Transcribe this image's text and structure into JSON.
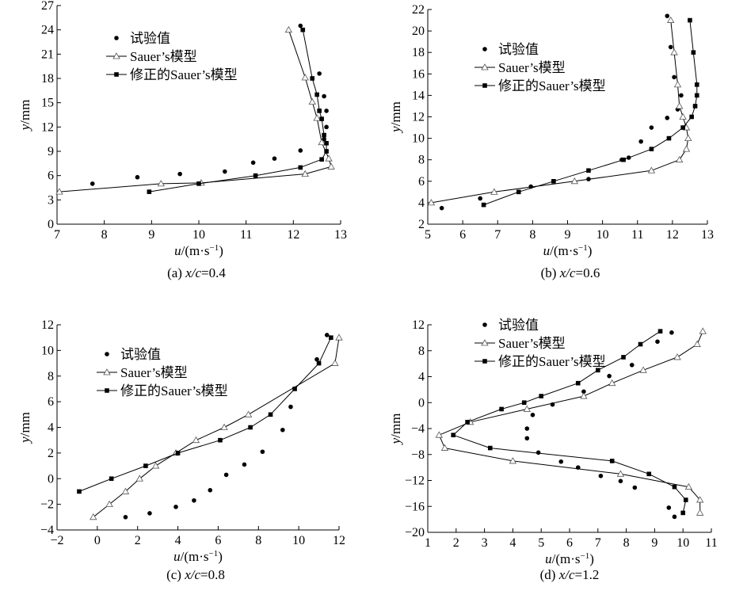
{
  "figure": {
    "legend_labels": {
      "exp": "试验值",
      "sauer": "Sauer’s模型",
      "mod": "修正的Sauer’s模型"
    },
    "xlabel": {
      "pre": "u",
      "post": "/(m·s",
      "sup": "−1",
      "close": ")"
    },
    "ylabel": {
      "pre": "y",
      "post": "/mm"
    }
  },
  "chart_data": [
    {
      "id": "a",
      "type": "scatter+line",
      "caption": {
        "pre": "(a) ",
        "it": "x/c",
        "post": "=0.4"
      },
      "xlim": [
        7,
        13
      ],
      "ylim": [
        0,
        27
      ],
      "xticks": [
        7,
        8,
        9,
        10,
        11,
        12,
        13
      ],
      "yticks": [
        0,
        3,
        6,
        9,
        12,
        15,
        18,
        21,
        24,
        27
      ],
      "legend_position": "top-left",
      "series": [
        {
          "name": "试验值",
          "marker": "circle",
          "line": false,
          "points": [
            [
              7.75,
              5.0
            ],
            [
              8.7,
              5.8
            ],
            [
              9.6,
              6.2
            ],
            [
              10.55,
              6.5
            ],
            [
              11.15,
              7.6
            ],
            [
              11.6,
              8.1
            ],
            [
              12.15,
              9.1
            ],
            [
              12.65,
              10.5
            ],
            [
              12.7,
              12.0
            ],
            [
              12.7,
              14.0
            ],
            [
              12.65,
              15.8
            ],
            [
              12.55,
              18.6
            ],
            [
              12.15,
              24.5
            ]
          ]
        },
        {
          "name": "Sauer’s模型",
          "marker": "triangle",
          "line": true,
          "points": [
            [
              7.05,
              4.0
            ],
            [
              9.2,
              5.0
            ],
            [
              10.05,
              5.1
            ],
            [
              12.25,
              6.2
            ],
            [
              12.8,
              7.1
            ],
            [
              12.75,
              8.1
            ],
            [
              12.6,
              10.1
            ],
            [
              12.5,
              13.1
            ],
            [
              12.4,
              15.1
            ],
            [
              12.25,
              18.1
            ],
            [
              11.9,
              24.0
            ]
          ]
        },
        {
          "name": "修正的Sauer’s模型",
          "marker": "square",
          "line": true,
          "points": [
            [
              8.95,
              4.0
            ],
            [
              10.0,
              5.0
            ],
            [
              11.2,
              6.0
            ],
            [
              12.15,
              7.0
            ],
            [
              12.6,
              8.0
            ],
            [
              12.7,
              9.0
            ],
            [
              12.7,
              10.0
            ],
            [
              12.65,
              11.0
            ],
            [
              12.6,
              13.0
            ],
            [
              12.55,
              14.0
            ],
            [
              12.5,
              16.0
            ],
            [
              12.4,
              18.0
            ],
            [
              12.2,
              24.0
            ]
          ]
        }
      ]
    },
    {
      "id": "b",
      "type": "scatter+line",
      "caption": {
        "pre": "(b) ",
        "it": "x/c",
        "post": "=0.6"
      },
      "xlim": [
        5,
        13
      ],
      "ylim": [
        2,
        22
      ],
      "xticks": [
        5,
        6,
        7,
        8,
        9,
        10,
        11,
        12,
        13
      ],
      "yticks": [
        2,
        4,
        6,
        8,
        10,
        12,
        14,
        16,
        18,
        20,
        22
      ],
      "legend_position": "top-left",
      "series": [
        {
          "name": "试验值",
          "marker": "circle",
          "line": false,
          "points": [
            [
              5.4,
              3.5
            ],
            [
              6.5,
              4.4
            ],
            [
              7.95,
              5.5
            ],
            [
              9.6,
              6.2
            ],
            [
              10.55,
              8.0
            ],
            [
              10.75,
              8.2
            ],
            [
              11.1,
              9.7
            ],
            [
              11.4,
              11.0
            ],
            [
              11.85,
              11.9
            ],
            [
              12.15,
              12.7
            ],
            [
              12.25,
              14.0
            ],
            [
              12.05,
              15.7
            ],
            [
              11.95,
              18.5
            ],
            [
              11.85,
              21.4
            ]
          ]
        },
        {
          "name": "Sauer’s模型",
          "marker": "triangle",
          "line": true,
          "points": [
            [
              5.1,
              4.0
            ],
            [
              6.9,
              5.0
            ],
            [
              9.2,
              6.0
            ],
            [
              11.4,
              7.0
            ],
            [
              12.2,
              8.0
            ],
            [
              12.4,
              9.0
            ],
            [
              12.45,
              10.0
            ],
            [
              12.4,
              11.0
            ],
            [
              12.3,
              12.0
            ],
            [
              12.2,
              13.0
            ],
            [
              12.15,
              15.0
            ],
            [
              12.05,
              18.0
            ],
            [
              11.95,
              21.0
            ]
          ]
        },
        {
          "name": "修正的Sauer’s模型",
          "marker": "square",
          "line": true,
          "points": [
            [
              6.6,
              3.8
            ],
            [
              7.6,
              5.0
            ],
            [
              8.6,
              6.0
            ],
            [
              9.6,
              7.0
            ],
            [
              10.6,
              8.0
            ],
            [
              11.4,
              9.0
            ],
            [
              11.9,
              10.0
            ],
            [
              12.3,
              11.0
            ],
            [
              12.55,
              12.0
            ],
            [
              12.65,
              13.0
            ],
            [
              12.7,
              14.0
            ],
            [
              12.7,
              15.0
            ],
            [
              12.6,
              18.0
            ],
            [
              12.5,
              21.0
            ]
          ]
        }
      ]
    },
    {
      "id": "c",
      "type": "scatter+line",
      "caption": {
        "pre": "(c) ",
        "it": "x/c",
        "post": "=0.8"
      },
      "xlim": [
        -2,
        12
      ],
      "ylim": [
        -4,
        12
      ],
      "xticks": [
        -2,
        0,
        2,
        4,
        6,
        8,
        10,
        12
      ],
      "yticks": [
        -4,
        -2,
        0,
        2,
        4,
        6,
        8,
        10,
        12
      ],
      "legend_position": "top-left",
      "series": [
        {
          "name": "试验值",
          "marker": "circle",
          "line": false,
          "points": [
            [
              1.4,
              -3.0
            ],
            [
              2.6,
              -2.7
            ],
            [
              3.9,
              -2.2
            ],
            [
              4.8,
              -1.7
            ],
            [
              5.6,
              -0.9
            ],
            [
              6.4,
              0.3
            ],
            [
              7.3,
              1.1
            ],
            [
              8.2,
              2.1
            ],
            [
              9.2,
              3.8
            ],
            [
              9.6,
              5.6
            ],
            [
              10.9,
              9.3
            ],
            [
              11.4,
              11.2
            ]
          ]
        },
        {
          "name": "Sauer’s模型",
          "marker": "triangle",
          "line": true,
          "points": [
            [
              -0.2,
              -3.0
            ],
            [
              0.6,
              -2.0
            ],
            [
              1.4,
              -1.0
            ],
            [
              2.1,
              0.0
            ],
            [
              2.9,
              1.0
            ],
            [
              3.9,
              2.0
            ],
            [
              4.9,
              3.0
            ],
            [
              6.3,
              4.0
            ],
            [
              7.5,
              5.0
            ],
            [
              11.8,
              9.0
            ],
            [
              12.0,
              11.0
            ]
          ]
        },
        {
          "name": "修正的Sauer’s模型",
          "marker": "square",
          "line": true,
          "points": [
            [
              -0.9,
              -1.0
            ],
            [
              0.7,
              0.0
            ],
            [
              2.4,
              1.0
            ],
            [
              4.0,
              2.0
            ],
            [
              6.1,
              3.0
            ],
            [
              7.6,
              4.0
            ],
            [
              8.6,
              5.0
            ],
            [
              9.8,
              7.0
            ],
            [
              11.0,
              9.0
            ],
            [
              11.6,
              11.0
            ]
          ]
        }
      ]
    },
    {
      "id": "d",
      "type": "scatter+line",
      "caption": {
        "pre": "(d) ",
        "it": "x/c",
        "post": "=1.2"
      },
      "xlim": [
        1,
        11
      ],
      "ylim": [
        -20,
        12
      ],
      "xticks": [
        1,
        2,
        3,
        4,
        5,
        6,
        7,
        8,
        9,
        10,
        11
      ],
      "yticks": [
        -20,
        -16,
        -12,
        -8,
        -4,
        0,
        4,
        8,
        12
      ],
      "legend_position": "top-left",
      "series": [
        {
          "name": "试验值",
          "marker": "circle",
          "line": false,
          "points": [
            [
              9.7,
              -17.6
            ],
            [
              9.5,
              -16.2
            ],
            [
              8.3,
              -13.1
            ],
            [
              7.8,
              -12.1
            ],
            [
              7.1,
              -11.3
            ],
            [
              6.3,
              -10.0
            ],
            [
              5.7,
              -9.1
            ],
            [
              4.9,
              -7.7
            ],
            [
              4.5,
              -5.5
            ],
            [
              4.5,
              -4.0
            ],
            [
              4.7,
              -1.9
            ],
            [
              5.4,
              -0.3
            ],
            [
              6.5,
              1.7
            ],
            [
              7.4,
              4.1
            ],
            [
              8.2,
              5.8
            ],
            [
              9.1,
              9.4
            ],
            [
              9.6,
              10.8
            ]
          ]
        },
        {
          "name": "Sauer’s模型",
          "marker": "triangle",
          "line": true,
          "points": [
            [
              10.6,
              -17.0
            ],
            [
              10.6,
              -15.0
            ],
            [
              10.2,
              -13.0
            ],
            [
              7.8,
              -11.0
            ],
            [
              4.0,
              -9.0
            ],
            [
              1.6,
              -7.0
            ],
            [
              1.4,
              -5.0
            ],
            [
              2.5,
              -3.0
            ],
            [
              4.5,
              -1.0
            ],
            [
              6.5,
              1.0
            ],
            [
              7.5,
              3.0
            ],
            [
              8.6,
              5.0
            ],
            [
              9.8,
              7.0
            ],
            [
              10.5,
              9.0
            ],
            [
              10.7,
              11.0
            ]
          ]
        },
        {
          "name": "修正的Sauer’s模型",
          "marker": "square",
          "line": true,
          "points": [
            [
              10.0,
              -17.0
            ],
            [
              10.1,
              -15.0
            ],
            [
              9.7,
              -13.0
            ],
            [
              8.8,
              -11.0
            ],
            [
              7.5,
              -9.0
            ],
            [
              3.2,
              -7.0
            ],
            [
              1.9,
              -5.0
            ],
            [
              2.4,
              -3.0
            ],
            [
              3.6,
              -1.0
            ],
            [
              4.4,
              0.0
            ],
            [
              5.0,
              1.0
            ],
            [
              6.3,
              3.0
            ],
            [
              7.0,
              5.0
            ],
            [
              7.9,
              7.0
            ],
            [
              8.5,
              9.0
            ],
            [
              9.2,
              11.0
            ]
          ]
        }
      ]
    }
  ]
}
